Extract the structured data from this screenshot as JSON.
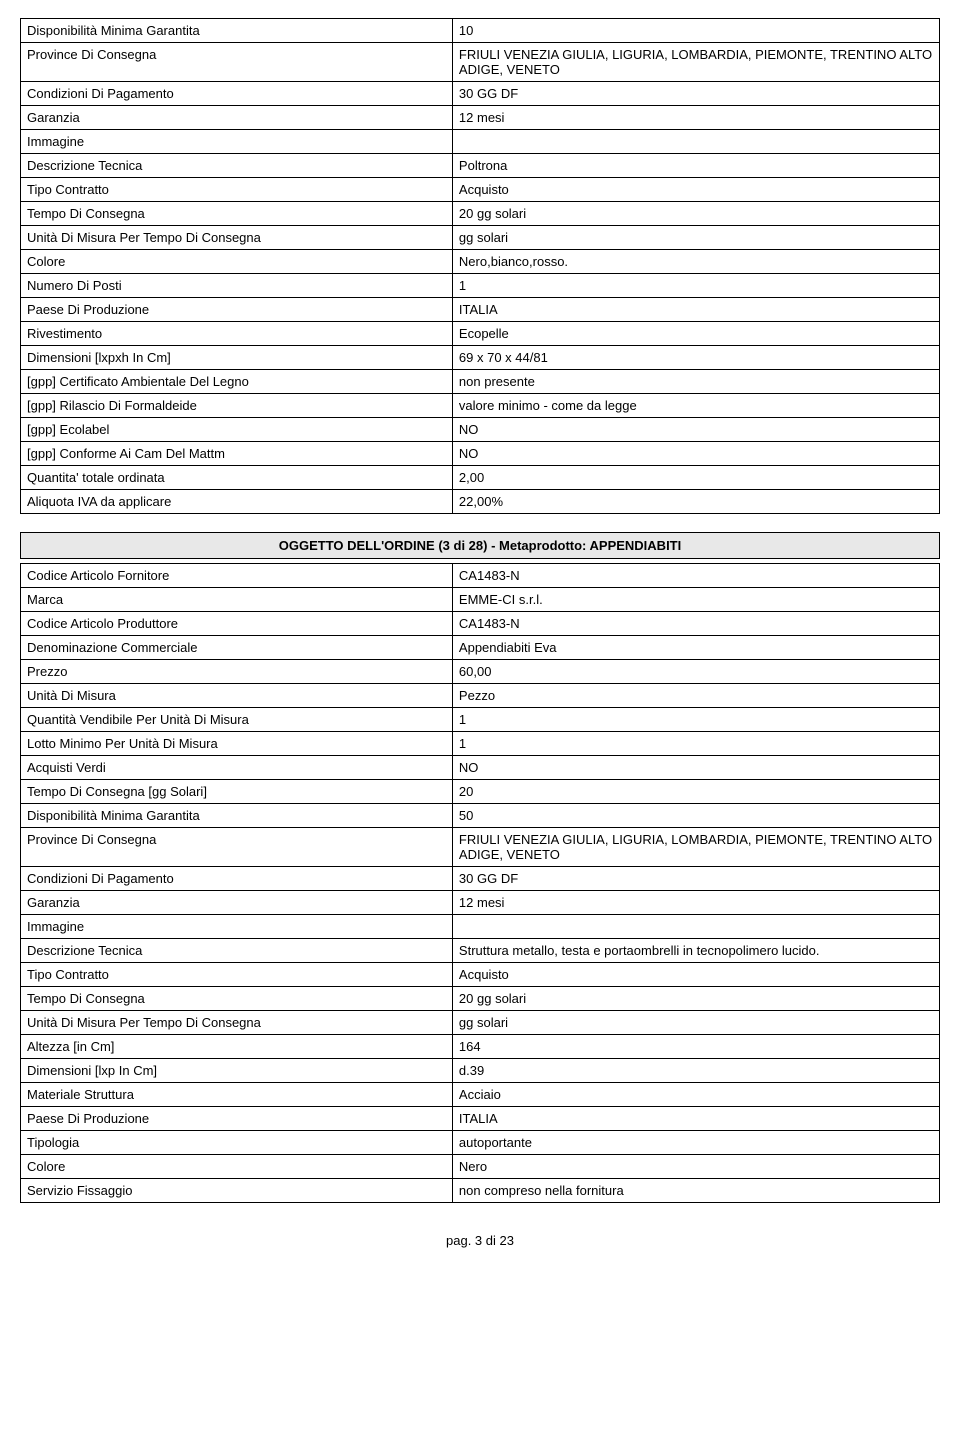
{
  "table1": {
    "rows": [
      {
        "label": "Disponibilità Minima Garantita",
        "value": "10"
      },
      {
        "label": "Province Di Consegna",
        "value": "FRIULI VENEZIA GIULIA, LIGURIA, LOMBARDIA, PIEMONTE, TRENTINO ALTO ADIGE, VENETO"
      },
      {
        "label": "Condizioni Di Pagamento",
        "value": "30 GG DF"
      },
      {
        "label": "Garanzia",
        "value": "12 mesi"
      },
      {
        "label": "Immagine",
        "value": ""
      },
      {
        "label": "Descrizione Tecnica",
        "value": "Poltrona"
      },
      {
        "label": "Tipo Contratto",
        "value": "Acquisto"
      },
      {
        "label": "Tempo Di Consegna",
        "value": "20 gg solari"
      },
      {
        "label": "Unità Di Misura Per Tempo Di Consegna",
        "value": "gg solari"
      },
      {
        "label": "Colore",
        "value": "Nero,bianco,rosso."
      },
      {
        "label": "Numero Di Posti",
        "value": "1"
      },
      {
        "label": "Paese Di Produzione",
        "value": "ITALIA"
      },
      {
        "label": "Rivestimento",
        "value": "Ecopelle"
      },
      {
        "label": "Dimensioni [lxpxh In Cm]",
        "value": "69 x 70 x 44/81"
      },
      {
        "label": "[gpp] Certificato Ambientale Del Legno",
        "value": "non presente"
      },
      {
        "label": "[gpp] Rilascio Di Formaldeide",
        "value": "valore minimo - come da legge"
      },
      {
        "label": "[gpp] Ecolabel",
        "value": "NO"
      },
      {
        "label": "[gpp] Conforme Ai Cam Del Mattm",
        "value": "NO"
      },
      {
        "label": "Quantita' totale ordinata",
        "value": "2,00"
      },
      {
        "label": "Aliquota IVA da applicare",
        "value": "22,00%"
      }
    ]
  },
  "section_header": "OGGETTO DELL'ORDINE (3 di 28) - Metaprodotto: APPENDIABITI",
  "table2": {
    "rows": [
      {
        "label": "Codice Articolo Fornitore",
        "value": "CA1483-N"
      },
      {
        "label": "Marca",
        "value": "EMME-CI s.r.l."
      },
      {
        "label": "Codice Articolo Produttore",
        "value": "CA1483-N"
      },
      {
        "label": "Denominazione Commerciale",
        "value": "Appendiabiti Eva"
      },
      {
        "label": "Prezzo",
        "value": "60,00"
      },
      {
        "label": "Unità Di Misura",
        "value": "Pezzo"
      },
      {
        "label": "Quantità Vendibile Per Unità Di Misura",
        "value": "1"
      },
      {
        "label": "Lotto Minimo Per Unità Di Misura",
        "value": "1"
      },
      {
        "label": "Acquisti Verdi",
        "value": "NO"
      },
      {
        "label": "Tempo Di Consegna [gg Solari]",
        "value": "20"
      },
      {
        "label": "Disponibilità Minima Garantita",
        "value": "50"
      },
      {
        "label": "Province Di Consegna",
        "value": "FRIULI VENEZIA GIULIA, LIGURIA, LOMBARDIA, PIEMONTE, TRENTINO ALTO ADIGE, VENETO"
      },
      {
        "label": "Condizioni Di Pagamento",
        "value": "30 GG DF"
      },
      {
        "label": "Garanzia",
        "value": "12 mesi"
      },
      {
        "label": "Immagine",
        "value": ""
      },
      {
        "label": "Descrizione Tecnica",
        "value": "Struttura metallo, testa e portaombrelli in tecnopolimero lucido."
      },
      {
        "label": "Tipo Contratto",
        "value": "Acquisto"
      },
      {
        "label": "Tempo Di Consegna",
        "value": "20 gg solari"
      },
      {
        "label": "Unità Di Misura Per Tempo Di Consegna",
        "value": "gg solari"
      },
      {
        "label": "Altezza [in Cm]",
        "value": "164"
      },
      {
        "label": "Dimensioni [lxp In Cm]",
        "value": "d.39"
      },
      {
        "label": "Materiale Struttura",
        "value": "Acciaio"
      },
      {
        "label": "Paese Di Produzione",
        "value": "ITALIA"
      },
      {
        "label": "Tipologia",
        "value": "autoportante"
      },
      {
        "label": "Colore",
        "value": "Nero"
      },
      {
        "label": "Servizio Fissaggio",
        "value": "non compreso nella fornitura"
      }
    ]
  },
  "footer": "pag. 3 di 23"
}
